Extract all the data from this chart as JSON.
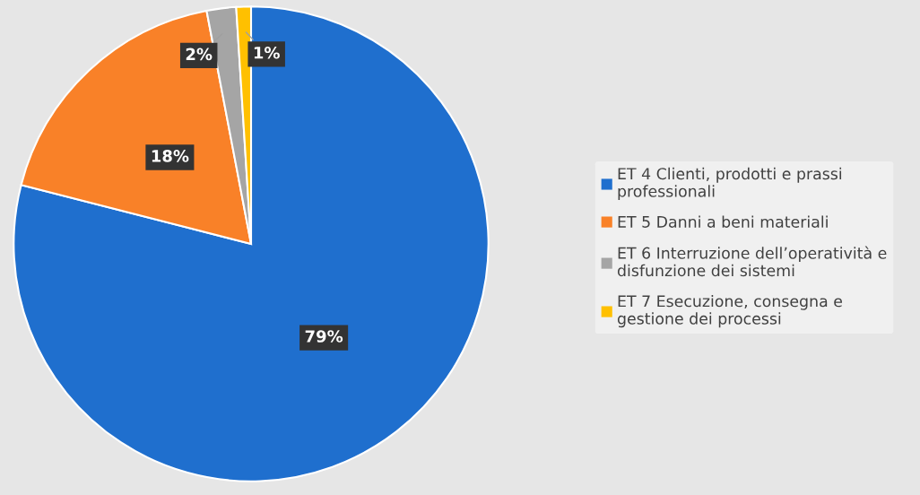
{
  "chart_data": {
    "type": "pie",
    "categories": [
      "ET 4 Clienti, prodotti e prassi\nprofessionali",
      "ET 5 Danni a beni materiali",
      "ET 6 Interruzione dell’operatività e\ndisfunzione dei sistemi",
      "ET 7 Esecuzione, consegna e\ngestione dei processi"
    ],
    "values": [
      79,
      18,
      2,
      1
    ],
    "colors": [
      "#1f6fce",
      "#f98128",
      "#a5a5a5",
      "#ffc000"
    ],
    "value_labels": [
      "79%",
      "18%",
      "2%",
      "1%"
    ],
    "legend": "right"
  }
}
